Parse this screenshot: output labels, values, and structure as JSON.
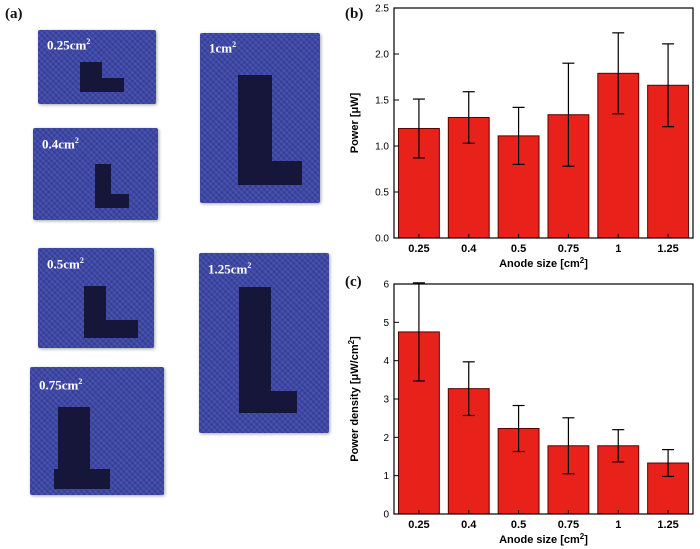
{
  "panels": {
    "a": {
      "label": "(a)",
      "swatches": [
        {
          "name": "0.25",
          "label_value": "0.25cm",
          "sup": "2"
        },
        {
          "name": "0.4",
          "label_value": "0.4cm",
          "sup": "2"
        },
        {
          "name": "0.5",
          "label_value": "0.5cm",
          "sup": "2"
        },
        {
          "name": "0.75",
          "label_value": "0.75cm",
          "sup": "2"
        },
        {
          "name": "1",
          "label_value": "1cm",
          "sup": "2"
        },
        {
          "name": "1.25",
          "label_value": "1.25cm",
          "sup": "2"
        }
      ]
    },
    "b": {
      "label": "(b)"
    },
    "c": {
      "label": "(c)"
    }
  },
  "colors": {
    "bar": "#e8221b",
    "bar_edge": "#5a0000",
    "fabric": "#3a45a8",
    "electrode": "#16163a"
  },
  "chart_data": [
    {
      "type": "bar",
      "panel": "b",
      "categories": [
        "0.25",
        "0.4",
        "0.5",
        "0.75",
        "1",
        "1.25"
      ],
      "values": [
        1.19,
        1.31,
        1.11,
        1.34,
        1.79,
        1.66
      ],
      "errors": [
        0.32,
        0.28,
        0.31,
        0.56,
        0.44,
        0.45
      ],
      "xlabel": "Anode size [cm",
      "xlabel_sup": "2",
      "xlabel_end": "]",
      "ylabel": "Power [μW]",
      "ylim": [
        0,
        2.5
      ],
      "yticks": [
        "0.0",
        "0.5",
        "1.0",
        "1.5",
        "2.0",
        "2.5"
      ]
    },
    {
      "type": "bar",
      "panel": "c",
      "categories": [
        "0.25",
        "0.4",
        "0.5",
        "0.75",
        "1",
        "1.25"
      ],
      "values": [
        4.75,
        3.27,
        2.23,
        1.78,
        1.78,
        1.33
      ],
      "errors": [
        1.28,
        0.7,
        0.6,
        0.73,
        0.42,
        0.35
      ],
      "xlabel": "Anode size [cm",
      "xlabel_sup": "2",
      "xlabel_end": "]",
      "ylabel": "Power density [μW/cm",
      "ylabel_sup": "2",
      "ylabel_end": "]",
      "ylim": [
        0,
        6
      ],
      "yticks": [
        "0",
        "1",
        "2",
        "3",
        "4",
        "5",
        "6"
      ]
    }
  ]
}
